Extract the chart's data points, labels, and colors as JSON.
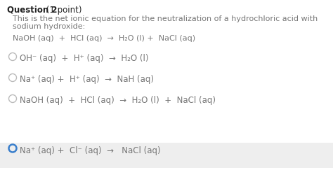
{
  "bg_color": "#ffffff",
  "highlight_bg": "#eeeeee",
  "title_bold": "Question 2",
  "title_normal": " (1 point)",
  "subtitle_line1": "This is the net ionic equation for the neutralization of a hydrochloric acid with",
  "subtitle_line2": "sodium hydroxide:",
  "equation": "NaOH (aq)  +  HCl (aq)  →  H₂O (l) +  NaCl (aq)",
  "options": [
    {
      "text": "OH⁻ (aq)  +  H⁺ (aq)  →  H₂O (l)",
      "selected": false
    },
    {
      "text": "Na⁺ (aq) +  H⁺ (aq)  →  NaH (aq)",
      "selected": false
    },
    {
      "text": "NaOH (aq)  +  HCl (aq)  →  H₂O (l)  +  NaCl (aq)",
      "selected": false
    },
    {
      "text": "Na⁺ (aq) +  Cl⁻ (aq)  →   NaCl (aq)",
      "selected": true
    }
  ],
  "circle_color_unselected": "#bbbbbb",
  "circle_color_selected": "#3a7fcc",
  "text_color": "#777777",
  "title_color": "#222222",
  "font_size_title": 8.5,
  "font_size_body": 8.0,
  "font_size_options": 8.5
}
